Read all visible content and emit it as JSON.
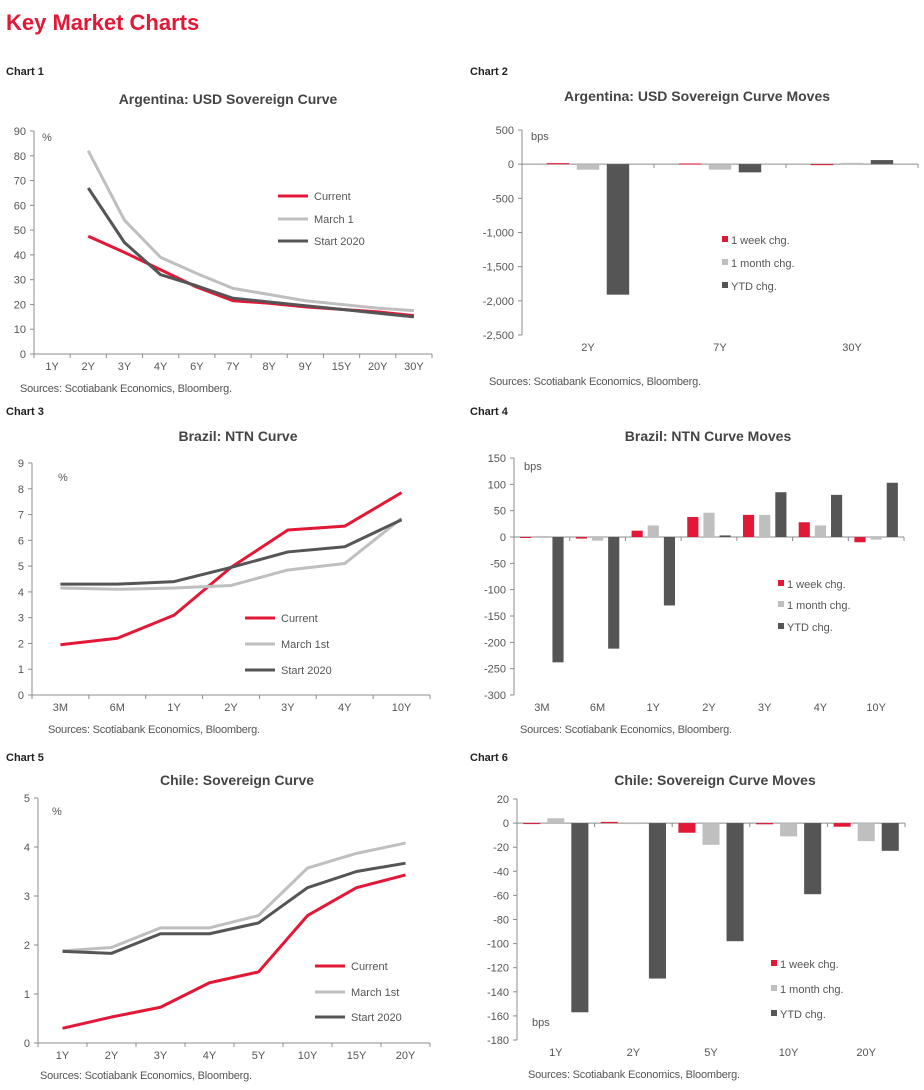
{
  "page": {
    "title": "Key Market Charts"
  },
  "colors": {
    "current": "#e31837",
    "march": "#bfbfbf",
    "start": "#555555",
    "axis": "#8c8c8c"
  },
  "chart_data": [
    {
      "label": "Chart 1",
      "type": "line",
      "title": "Argentina:  USD Sovereign Curve",
      "unit": "%",
      "source": "Sources: Scotiabank Economics, Bloomberg.",
      "categories": [
        "1Y",
        "2Y",
        "3Y",
        "4Y",
        "6Y",
        "7Y",
        "8Y",
        "9Y",
        "15Y",
        "20Y",
        "30Y"
      ],
      "ylim": [
        0,
        90
      ],
      "ystep": 10,
      "ytick_format": "plain",
      "series": [
        {
          "name": "Current",
          "color": "#e31837",
          "values": [
            null,
            47.5,
            41,
            34,
            27,
            21.5,
            20.5,
            19,
            18,
            17,
            15.5
          ]
        },
        {
          "name": "March 1",
          "color": "#bfbfbf",
          "values": [
            null,
            82,
            54,
            39,
            32.5,
            26.5,
            24,
            21.5,
            20,
            18.5,
            17.5
          ]
        },
        {
          "name": "Start 2020",
          "color": "#555555",
          "values": [
            null,
            67,
            45,
            32,
            27.5,
            22.5,
            21,
            19.5,
            18,
            16.5,
            15
          ]
        }
      ],
      "legend": "center-right"
    },
    {
      "label": "Chart 2",
      "type": "bar",
      "title": "Argentina:  USD Sovereign Curve Moves",
      "unit": "bps",
      "source": "Sources: Scotiabank Economics, Bloomberg.",
      "categories": [
        "2Y",
        "7Y",
        "30Y"
      ],
      "ylim": [
        -2500,
        500
      ],
      "ystep": 500,
      "ytick_format": "comma",
      "series": [
        {
          "name": "1 week chg.",
          "color": "#e31837",
          "values": [
            15,
            10,
            -5
          ]
        },
        {
          "name": "1 month chg.",
          "color": "#bfbfbf",
          "values": [
            -80,
            -80,
            20
          ]
        },
        {
          "name": "YTD chg.",
          "color": "#555555",
          "values": [
            -1910,
            -120,
            60
          ]
        }
      ],
      "legend": "center-right"
    },
    {
      "label": "Chart 3",
      "type": "line",
      "title": "Brazil: NTN Curve",
      "unit": "%",
      "source": "Sources: Scotiabank Economics, Bloomberg.",
      "categories": [
        "3M",
        "6M",
        "1Y",
        "2Y",
        "3Y",
        "4Y",
        "10Y"
      ],
      "ylim": [
        0,
        9
      ],
      "ystep": 1,
      "ytick_format": "plain",
      "series": [
        {
          "name": "Current",
          "color": "#e31837",
          "values": [
            1.95,
            2.2,
            3.1,
            4.95,
            6.4,
            6.55,
            7.85
          ]
        },
        {
          "name": "March 1st",
          "color": "#bfbfbf",
          "values": [
            4.15,
            4.1,
            4.15,
            4.25,
            4.85,
            5.1,
            6.85
          ]
        },
        {
          "name": "Start 2020",
          "color": "#555555",
          "values": [
            4.3,
            4.3,
            4.4,
            4.95,
            5.55,
            5.75,
            6.8
          ]
        }
      ],
      "legend": "bottom-center"
    },
    {
      "label": "Chart 4",
      "type": "bar",
      "title": "Brazil: NTN Curve Moves",
      "unit": "bps",
      "source": "Sources: Scotiabank Economics, Bloomberg.",
      "categories": [
        "3M",
        "6M",
        "1Y",
        "2Y",
        "3Y",
        "4Y",
        "10Y"
      ],
      "ylim": [
        -300,
        150
      ],
      "ystep": 50,
      "ytick_format": "plain",
      "series": [
        {
          "name": "1 week chg.",
          "color": "#e31837",
          "values": [
            0,
            -3,
            12,
            38,
            42,
            28,
            -10
          ]
        },
        {
          "name": "1 month chg.",
          "color": "#bfbfbf",
          "values": [
            2,
            -7,
            22,
            46,
            42,
            22,
            -5
          ]
        },
        {
          "name": "YTD chg.",
          "color": "#555555",
          "values": [
            -238,
            -212,
            -130,
            3,
            85,
            80,
            103
          ]
        }
      ],
      "legend": "center-right"
    },
    {
      "label": "Chart 5",
      "type": "line",
      "title": "Chile:  Sovereign Curve",
      "unit": "%",
      "source": "Sources: Scotiabank Economics, Bloomberg.",
      "categories": [
        "1Y",
        "2Y",
        "3Y",
        "4Y",
        "5Y",
        "10Y",
        "15Y",
        "20Y"
      ],
      "ylim": [
        0,
        5
      ],
      "ystep": 1,
      "ytick_format": "plain",
      "series": [
        {
          "name": "Current",
          "color": "#e31837",
          "values": [
            0.3,
            0.53,
            0.73,
            1.23,
            1.45,
            2.6,
            3.17,
            3.43
          ]
        },
        {
          "name": "March 1st",
          "color": "#bfbfbf",
          "values": [
            1.88,
            1.95,
            2.35,
            2.35,
            2.6,
            3.57,
            3.87,
            4.08
          ]
        },
        {
          "name": "Start 2020",
          "color": "#555555",
          "values": [
            1.87,
            1.83,
            2.23,
            2.23,
            2.45,
            3.17,
            3.5,
            3.67
          ]
        }
      ],
      "legend": "bottom-right"
    },
    {
      "label": "Chart 6",
      "type": "bar",
      "title": "Chile:  Sovereign Curve Moves",
      "unit": "bps",
      "source": "Sources: Scotiabank Economics, Bloomberg.",
      "categories": [
        "1Y",
        "2Y",
        "5Y",
        "10Y",
        "20Y"
      ],
      "ylim": [
        -180,
        20
      ],
      "ystep": 20,
      "ytick_format": "plain",
      "series": [
        {
          "name": "1 week chg.",
          "color": "#e31837",
          "values": [
            0,
            1,
            -8,
            -1,
            -3
          ]
        },
        {
          "name": "1 month chg.",
          "color": "#bfbfbf",
          "values": [
            4,
            0,
            -18,
            -11,
            -15
          ]
        },
        {
          "name": "YTD chg.",
          "color": "#555555",
          "values": [
            -157,
            -129,
            -98,
            -59,
            -23
          ]
        }
      ],
      "legend": "bottom-right"
    }
  ]
}
